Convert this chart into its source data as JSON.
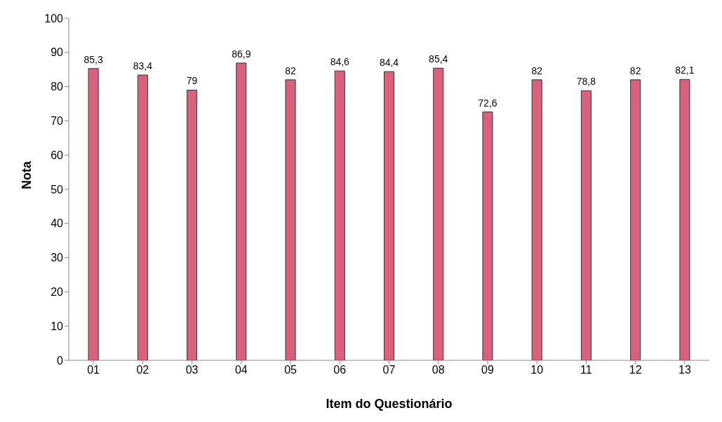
{
  "chart_data": {
    "type": "bar",
    "xlabel": "Item do Questionário",
    "ylabel": "Nota",
    "categories": [
      "01",
      "02",
      "03",
      "04",
      "05",
      "06",
      "07",
      "08",
      "09",
      "10",
      "11",
      "12",
      "13"
    ],
    "values": [
      85.3,
      83.4,
      79,
      86.9,
      82,
      84.6,
      84.4,
      85.4,
      72.6,
      82,
      78.8,
      82,
      82.1
    ],
    "value_labels": [
      "85,3",
      "83,4",
      "79",
      "86,9",
      "82",
      "84,6",
      "84,4",
      "85,4",
      "72,6",
      "82",
      "78,8",
      "82",
      "82,1"
    ],
    "color": "#d9617b",
    "ylim": [
      0,
      100
    ],
    "yticks": [
      0,
      10,
      20,
      30,
      40,
      50,
      60,
      70,
      80,
      90,
      100
    ],
    "grid": false,
    "legend": false
  }
}
